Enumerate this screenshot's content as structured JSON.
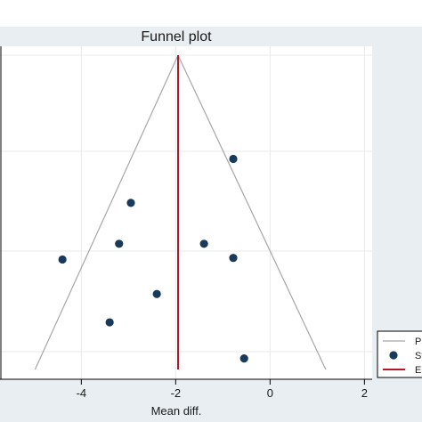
{
  "chart_data": {
    "type": "scatter",
    "title": "Funnel plot",
    "xlabel": "Mean diff.",
    "ylabel": "",
    "xlim": [
      -5.5,
      2.1
    ],
    "x_ticks": [
      "-4",
      "-2",
      "0",
      "2"
    ],
    "x_tick_values": [
      -4,
      -2,
      0,
      2
    ],
    "ylim_relative": [
      0,
      1
    ],
    "grid": true,
    "legend": {
      "placement": "bottom-right (partially cropped)",
      "entries": [
        {
          "label": "Ps",
          "kind": "line",
          "color": "#a6a6a6"
        },
        {
          "label": "St",
          "kind": "marker",
          "color": "#1a3a5c"
        },
        {
          "label": "Es",
          "kind": "line",
          "color": "#b2182b"
        }
      ]
    },
    "funnel": {
      "apex_x": -1.95,
      "apex_rel": 0.0,
      "base_left_x": -4.98,
      "base_right_x": 1.18,
      "base_rel": 1.0
    },
    "effect_line_x": -1.95,
    "series": [
      {
        "name": "",
        "points": [
          {
            "x": -0.78,
            "y_rel": 0.33
          },
          {
            "x": -2.95,
            "y_rel": 0.47
          },
          {
            "x": -3.2,
            "y_rel": 0.6
          },
          {
            "x": -1.4,
            "y_rel": 0.6
          },
          {
            "x": -4.4,
            "y_rel": 0.65
          },
          {
            "x": -0.78,
            "y_rel": 0.645
          },
          {
            "x": -2.4,
            "y_rel": 0.76
          },
          {
            "x": -3.4,
            "y_rel": 0.85
          },
          {
            "x": -0.55,
            "y_rel": 0.965
          }
        ]
      }
    ]
  },
  "colors": {
    "frame_bg": "#e8eef2",
    "plot_bg": "#ffffff",
    "funnel": "#a6a6a6",
    "effect": "#b2182b",
    "marker": "#1a3a5c",
    "grid": "#e4eaee",
    "axis": "#000000"
  }
}
